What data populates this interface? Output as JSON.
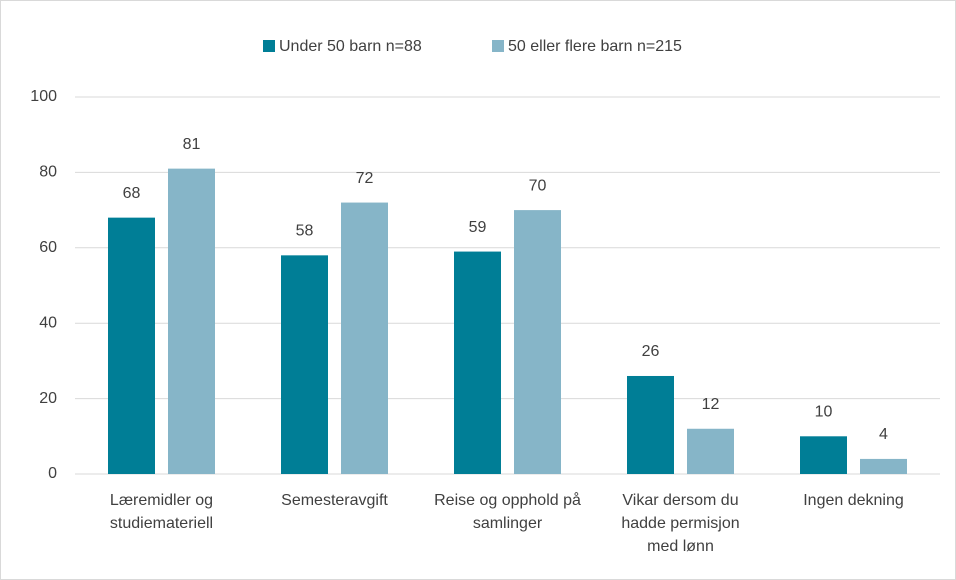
{
  "chart_data": {
    "type": "bar",
    "categories": [
      "Læremidler og studiemateriell",
      "Semesteravgift",
      "Reise og opphold på samlinger",
      "Vikar dersom du hadde permisjon med lønn",
      "Ingen dekning"
    ],
    "series": [
      {
        "name": "Under 50 barn n=88",
        "color": "#007e96",
        "values": [
          68,
          58,
          59,
          26,
          10
        ]
      },
      {
        "name": "50 eller flere barn n=215",
        "color": "#86b5c8",
        "values": [
          81,
          72,
          70,
          12,
          4
        ]
      }
    ],
    "ylim": [
      0,
      100
    ],
    "yticks": [
      0,
      20,
      40,
      60,
      80,
      100
    ],
    "grid": true,
    "legend": "top"
  }
}
